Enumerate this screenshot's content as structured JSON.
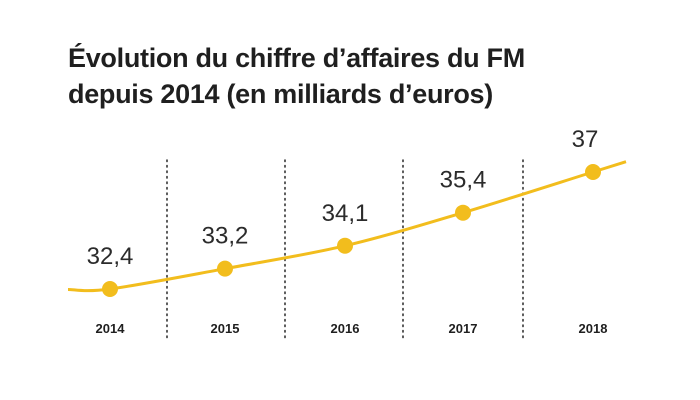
{
  "chart_data": {
    "type": "line",
    "title_lines": [
      "Évolution du chiffre d’affaires du FM",
      "depuis 2014 (en milliards d’euros)"
    ],
    "categories": [
      "2014",
      "2015",
      "2016",
      "2017",
      "2018"
    ],
    "series": [
      {
        "values": [
          32.4,
          33.2,
          34.1,
          35.4,
          37
        ],
        "value_labels": [
          "32,4",
          "33,2",
          "34,1",
          "35,4",
          "37"
        ]
      }
    ],
    "grid": "dotted vertical separators between years",
    "colors": {
      "line": "#f2bd1d",
      "marker": "#f2bd1d",
      "separator": "#333333"
    }
  }
}
